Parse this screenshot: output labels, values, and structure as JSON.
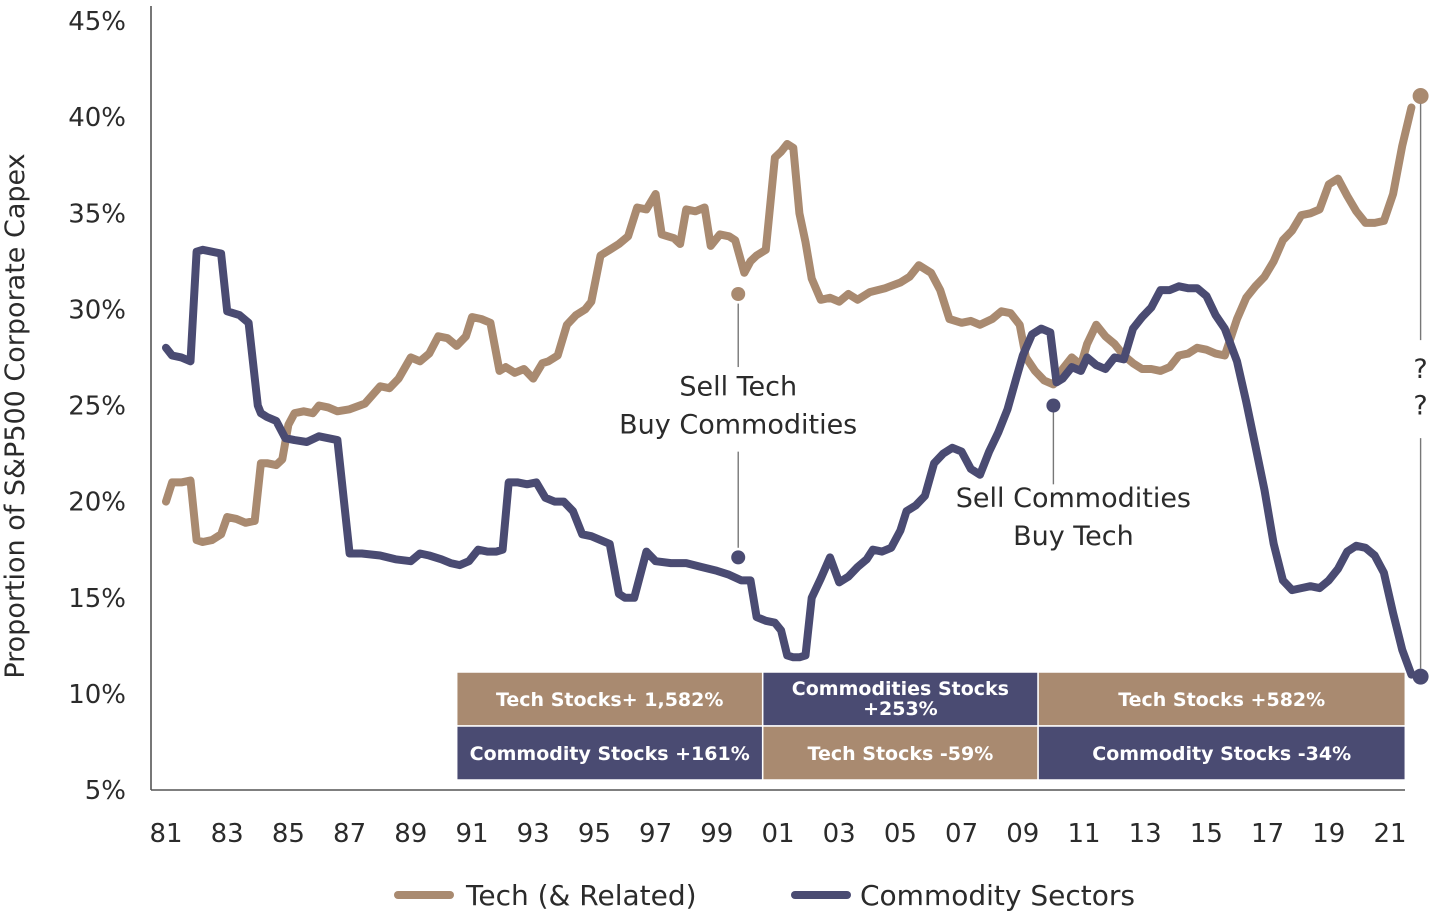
{
  "chart_data": {
    "type": "line",
    "ylabel": "Proportion of S&P500 Corporate Capex",
    "xlabel": "",
    "ylim": [
      5,
      45
    ],
    "xlim": [
      1980.8,
      2022.2
    ],
    "y_ticks": [
      "5%",
      "10%",
      "15%",
      "20%",
      "25%",
      "30%",
      "35%",
      "40%",
      "45%"
    ],
    "y_tick_values": [
      5,
      10,
      15,
      20,
      25,
      30,
      35,
      40,
      45
    ],
    "x_ticks": [
      "81",
      "83",
      "85",
      "87",
      "89",
      "91",
      "93",
      "95",
      "97",
      "99",
      "01",
      "03",
      "05",
      "07",
      "09",
      "11",
      "13",
      "15",
      "17",
      "19",
      "21"
    ],
    "x_tick_values": [
      1981,
      1983,
      1985,
      1987,
      1989,
      1991,
      1993,
      1995,
      1997,
      1999,
      2001,
      2003,
      2005,
      2007,
      2009,
      2011,
      2013,
      2015,
      2017,
      2019,
      2021
    ],
    "grid": false,
    "legend_position": "bottom",
    "series": [
      {
        "name": "Tech (& Related)",
        "color": "#a98a70",
        "x": [
          1981.0,
          1981.2,
          1981.5,
          1981.8,
          1982.0,
          1982.2,
          1982.5,
          1982.8,
          1983.0,
          1983.3,
          1983.6,
          1983.9,
          1984.1,
          1984.3,
          1984.6,
          1984.8,
          1985.0,
          1985.2,
          1985.5,
          1985.8,
          1986.0,
          1986.3,
          1986.6,
          1987.0,
          1987.5,
          1988.0,
          1988.3,
          1988.6,
          1989.0,
          1989.3,
          1989.6,
          1989.9,
          1990.2,
          1990.5,
          1990.8,
          1991.0,
          1991.3,
          1991.6,
          1991.9,
          1992.1,
          1992.4,
          1992.7,
          1993.0,
          1993.3,
          1993.5,
          1993.8,
          1994.1,
          1994.4,
          1994.7,
          1994.9,
          1995.2,
          1995.5,
          1995.8,
          1996.1,
          1996.4,
          1996.7,
          1997.0,
          1997.2,
          1997.4,
          1997.6,
          1997.8,
          1998.0,
          1998.3,
          1998.6,
          1998.8,
          1999.1,
          1999.4,
          1999.6,
          1999.9,
          2000.1,
          2000.3,
          2000.6,
          2000.9,
          2001.1,
          2001.3,
          2001.5,
          2001.7,
          2001.9,
          2002.1,
          2002.4,
          2002.7,
          2003.0,
          2003.3,
          2003.6,
          2004.0,
          2004.5,
          2005.0,
          2005.3,
          2005.6,
          2006.0,
          2006.3,
          2006.6,
          2007.0,
          2007.3,
          2007.6,
          2008.0,
          2008.3,
          2008.6,
          2008.9,
          2009.1,
          2009.4,
          2009.7,
          2010.0,
          2010.3,
          2010.6,
          2010.9,
          2011.1,
          2011.4,
          2011.7,
          2012.0,
          2012.3,
          2012.6,
          2012.9,
          2013.2,
          2013.5,
          2013.8,
          2014.1,
          2014.4,
          2014.7,
          2015.0,
          2015.3,
          2015.6,
          2016.0,
          2016.3,
          2016.6,
          2016.9,
          2017.2,
          2017.5,
          2017.8,
          2018.1,
          2018.4,
          2018.7,
          2019.0,
          2019.3,
          2019.6,
          2019.9,
          2020.2,
          2020.5,
          2020.8,
          2021.1,
          2021.4,
          2021.7
        ],
        "values": [
          20.0,
          21.0,
          21.0,
          21.1,
          18.0,
          17.9,
          18.0,
          18.3,
          19.2,
          19.1,
          18.9,
          19.0,
          22.0,
          22.0,
          21.9,
          22.2,
          24.0,
          24.6,
          24.7,
          24.6,
          25.0,
          24.9,
          24.7,
          24.8,
          25.1,
          26.0,
          25.9,
          26.4,
          27.5,
          27.3,
          27.7,
          28.6,
          28.5,
          28.1,
          28.6,
          29.6,
          29.5,
          29.3,
          26.8,
          27.0,
          26.7,
          26.9,
          26.4,
          27.2,
          27.3,
          27.6,
          29.2,
          29.7,
          30.0,
          30.4,
          32.8,
          33.1,
          33.4,
          33.8,
          35.3,
          35.2,
          36.0,
          33.9,
          33.8,
          33.7,
          33.4,
          35.2,
          35.1,
          35.3,
          33.3,
          33.9,
          33.8,
          33.6,
          31.9,
          32.5,
          32.8,
          33.1,
          37.9,
          38.2,
          38.6,
          38.4,
          35.0,
          33.5,
          31.6,
          30.5,
          30.6,
          30.4,
          30.8,
          30.5,
          30.9,
          31.1,
          31.4,
          31.7,
          32.3,
          31.9,
          31.0,
          29.5,
          29.3,
          29.4,
          29.2,
          29.5,
          29.9,
          29.8,
          29.2,
          27.5,
          26.8,
          26.3,
          26.1,
          26.9,
          27.5,
          27.1,
          28.2,
          29.2,
          28.6,
          28.2,
          27.6,
          27.2,
          26.9,
          26.9,
          26.8,
          27.0,
          27.6,
          27.7,
          28.0,
          27.9,
          27.7,
          27.6,
          29.5,
          30.6,
          31.2,
          31.7,
          32.5,
          33.6,
          34.1,
          34.9,
          35.0,
          35.2,
          36.5,
          36.8,
          35.9,
          35.1,
          34.5,
          34.5,
          34.6,
          36.0,
          38.5,
          40.5
        ],
        "end_marker": {
          "x": 2022.0,
          "value": 41.1
        }
      },
      {
        "name": "Commodity Sectors",
        "color": "#4a4b72",
        "x": [
          1981.0,
          1981.2,
          1981.5,
          1981.8,
          1982.0,
          1982.2,
          1982.5,
          1982.8,
          1983.0,
          1983.2,
          1983.4,
          1983.7,
          1984.0,
          1984.1,
          1984.3,
          1984.6,
          1984.9,
          1985.2,
          1985.6,
          1986.0,
          1986.3,
          1986.6,
          1987.0,
          1987.2,
          1987.4,
          1988.0,
          1988.5,
          1989.0,
          1989.3,
          1989.6,
          1990.0,
          1990.3,
          1990.6,
          1990.9,
          1991.2,
          1991.5,
          1991.8,
          1992.0,
          1992.2,
          1992.5,
          1992.8,
          1993.1,
          1993.4,
          1993.7,
          1994.0,
          1994.3,
          1994.6,
          1994.9,
          1995.2,
          1995.5,
          1995.8,
          1996.0,
          1996.3,
          1996.7,
          1997.0,
          1997.5,
          1998.0,
          1998.5,
          1999.0,
          1999.4,
          1999.8,
          2000.1,
          2000.3,
          2000.6,
          2000.9,
          2001.1,
          2001.3,
          2001.5,
          2001.7,
          2001.9,
          2002.1,
          2002.4,
          2002.7,
          2003.0,
          2003.3,
          2003.6,
          2003.9,
          2004.1,
          2004.4,
          2004.7,
          2005.0,
          2005.2,
          2005.5,
          2005.8,
          2006.1,
          2006.4,
          2006.7,
          2007.0,
          2007.3,
          2007.6,
          2007.9,
          2008.2,
          2008.5,
          2008.8,
          2009.0,
          2009.3,
          2009.6,
          2009.9,
          2010.1,
          2010.3,
          2010.6,
          2010.9,
          2011.1,
          2011.4,
          2011.7,
          2012.0,
          2012.3,
          2012.6,
          2012.9,
          2013.2,
          2013.5,
          2013.8,
          2014.1,
          2014.4,
          2014.7,
          2015.0,
          2015.3,
          2015.6,
          2016.0,
          2016.3,
          2016.6,
          2016.9,
          2017.2,
          2017.5,
          2017.8,
          2018.1,
          2018.4,
          2018.7,
          2019.0,
          2019.3,
          2019.6,
          2019.9,
          2020.2,
          2020.5,
          2020.8,
          2021.1,
          2021.4,
          2021.7
        ],
        "values": [
          28.0,
          27.6,
          27.5,
          27.3,
          33.0,
          33.1,
          33.0,
          32.9,
          29.9,
          29.8,
          29.7,
          29.3,
          25.0,
          24.6,
          24.4,
          24.2,
          23.3,
          23.2,
          23.1,
          23.4,
          23.3,
          23.2,
          17.3,
          17.3,
          17.3,
          17.2,
          17.0,
          16.9,
          17.3,
          17.2,
          17.0,
          16.8,
          16.7,
          16.9,
          17.5,
          17.4,
          17.4,
          17.5,
          21.0,
          21.0,
          20.9,
          21.0,
          20.2,
          20.0,
          20.0,
          19.5,
          18.3,
          18.2,
          18.0,
          17.8,
          15.2,
          15.0,
          15.0,
          17.4,
          16.9,
          16.8,
          16.8,
          16.6,
          16.4,
          16.2,
          15.9,
          15.9,
          14.0,
          13.8,
          13.7,
          13.3,
          12.0,
          11.9,
          11.9,
          12.0,
          15.0,
          16.0,
          17.1,
          15.8,
          16.1,
          16.6,
          17.0,
          17.5,
          17.4,
          17.6,
          18.5,
          19.5,
          19.8,
          20.3,
          22.0,
          22.5,
          22.8,
          22.6,
          21.7,
          21.4,
          22.6,
          23.6,
          24.8,
          26.5,
          27.6,
          28.7,
          29.0,
          28.8,
          26.2,
          26.4,
          27.0,
          26.8,
          27.5,
          27.1,
          26.9,
          27.5,
          27.4,
          29.0,
          29.6,
          30.1,
          31.0,
          31.0,
          31.2,
          31.1,
          31.1,
          30.7,
          29.7,
          29.0,
          27.3,
          25.2,
          22.9,
          20.6,
          17.8,
          15.9,
          15.4,
          15.5,
          15.6,
          15.5,
          15.9,
          16.5,
          17.4,
          17.7,
          17.6,
          17.2,
          16.3,
          14.2,
          12.3,
          11.0
        ],
        "end_marker": {
          "x": 2022.0,
          "value": 10.9
        }
      }
    ],
    "annotations": [
      {
        "lines": [
          "Sell Tech",
          "Buy Commodities"
        ],
        "x": 1999.7,
        "text_y": [
          26.0,
          24.0
        ],
        "top_dot": 30.8,
        "bottom_dot": 17.1,
        "line_top": 30.3,
        "line_bottom": 17.6,
        "gap_top": 27.0,
        "gap_bottom": 22.6
      },
      {
        "lines": [
          "Sell Commodities",
          "Buy Tech"
        ],
        "x": 2010.0,
        "text_y": [
          20.2,
          18.2
        ],
        "top_dot": 25.0,
        "line_top": 25.0,
        "line_bottom": 20.9
      },
      {
        "lines": [
          "?",
          "?"
        ],
        "x": 2022.0,
        "text_y": [
          26.9,
          25.0
        ],
        "line_top": 40.7,
        "line_bottom": 11.3,
        "gap_top": 28.4,
        "gap_bottom": 23.3
      }
    ],
    "performance_table": {
      "rows": [
        [
          {
            "text": "Tech Stocks+ 1,582%",
            "x_start": 1990.5,
            "x_end": 2000.5,
            "color": "#a98a70"
          },
          {
            "text": "Commodities Stocks",
            "text2": "+253%",
            "x_start": 2000.5,
            "x_end": 2009.5,
            "color": "#4a4b72"
          },
          {
            "text": "Tech Stocks +582%",
            "x_start": 2009.5,
            "x_end": 2021.5,
            "color": "#a98a70"
          }
        ],
        [
          {
            "text": "Commodity Stocks +161%",
            "x_start": 1990.5,
            "x_end": 2000.5,
            "color": "#4a4b72"
          },
          {
            "text": "Tech Stocks -59%",
            "x_start": 2000.5,
            "x_end": 2009.5,
            "color": "#a98a70"
          },
          {
            "text": "Commodity Stocks -34%",
            "x_start": 2009.5,
            "x_end": 2021.5,
            "color": "#4a4b72"
          }
        ]
      ]
    }
  }
}
